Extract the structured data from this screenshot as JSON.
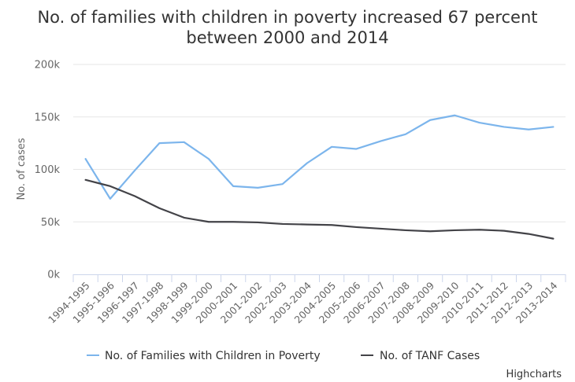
{
  "chart_data": {
    "type": "line",
    "title": "No. of families with children in poverty increased 67 percent between 2000 and 2014",
    "title_lines": [
      "No. of families with children in poverty increased 67 percent",
      "between 2000 and 2014"
    ],
    "xlabel": "",
    "ylabel": "No. of cases",
    "ylim": [
      0,
      200000
    ],
    "yticks": [
      0,
      50000,
      100000,
      150000,
      200000
    ],
    "ytick_labels": [
      "0k",
      "50k",
      "100k",
      "150k",
      "200k"
    ],
    "grid": true,
    "legend_position": "bottom-center",
    "categories": [
      "1994-1995",
      "1995-1996",
      "1996-1997",
      "1997-1998",
      "1998-1999",
      "1999-2000",
      "2000-2001",
      "2001-2002",
      "2002-2003",
      "2003-2004",
      "2004-2005",
      "2005-2006",
      "2006-2007",
      "2007-2008",
      "2008-2009",
      "2009-2010",
      "2010-2011",
      "2011-2012",
      "2012-2013",
      "2013-2014"
    ],
    "series": [
      {
        "name": "No. of Families with Children in Poverty",
        "color": "#7cb5ec",
        "values": [
          110000,
          72000,
          99000,
          125000,
          126000,
          110000,
          84000,
          82500,
          86000,
          106000,
          121500,
          119500,
          127000,
          133500,
          147000,
          151500,
          144500,
          140500,
          138000,
          140500
        ]
      },
      {
        "name": "No. of TANF Cases",
        "color": "#434348",
        "values": [
          90000,
          84000,
          74500,
          63000,
          54000,
          50000,
          50000,
          49500,
          48000,
          47500,
          47000,
          45000,
          43500,
          42000,
          41000,
          42000,
          42500,
          41500,
          38500,
          34000
        ]
      }
    ],
    "credits": "Highcharts"
  }
}
